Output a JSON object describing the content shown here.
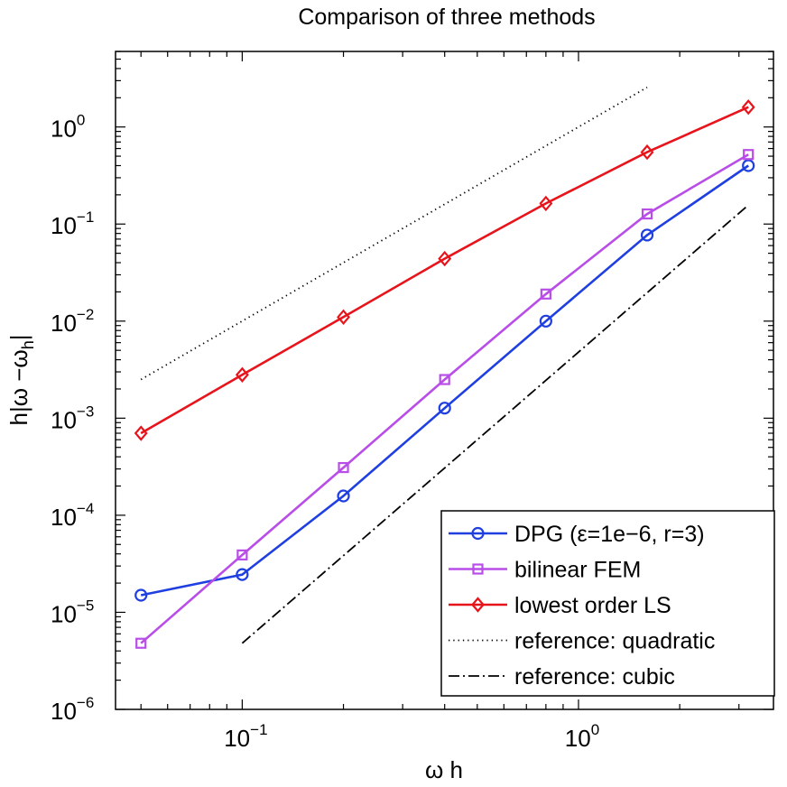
{
  "chart_data": {
    "type": "line",
    "title": "Comparison of three methods",
    "xlabel": "ω h",
    "ylabel": "h|ω −ω_h|",
    "xscale": "log",
    "yscale": "log",
    "xlim": [
      0.042,
      3.8
    ],
    "ylim": [
      1e-06,
      6
    ],
    "xticks": [
      {
        "base": "10",
        "exp": "−1",
        "value": 0.1
      },
      {
        "base": "10",
        "exp": "0",
        "value": 1
      }
    ],
    "yticks": [
      {
        "base": "10",
        "exp": "−6",
        "value": 1e-06
      },
      {
        "base": "10",
        "exp": "−5",
        "value": 1e-05
      },
      {
        "base": "10",
        "exp": "−4",
        "value": 0.0001
      },
      {
        "base": "10",
        "exp": "−3",
        "value": 0.001
      },
      {
        "base": "10",
        "exp": "−2",
        "value": 0.01
      },
      {
        "base": "10",
        "exp": "−1",
        "value": 0.1
      },
      {
        "base": "10",
        "exp": "0",
        "value": 1
      }
    ],
    "legend_position": "bottom-right",
    "series": [
      {
        "name": "DPG (ε=1e−6, r=3)",
        "color": "#1f3fe0",
        "marker": "circle",
        "line": "solid",
        "x": [
          0.05,
          0.1,
          0.2,
          0.4,
          0.8,
          1.6,
          3.2
        ],
        "y": [
          1.5e-05,
          2.45e-05,
          0.000158,
          0.00127,
          0.01,
          0.077,
          0.4
        ]
      },
      {
        "name": "bilinear FEM",
        "color": "#b94de8",
        "marker": "square",
        "line": "solid",
        "x": [
          0.05,
          0.1,
          0.2,
          0.4,
          0.8,
          1.6,
          3.2
        ],
        "y": [
          4.8e-06,
          3.9e-05,
          0.00031,
          0.0025,
          0.019,
          0.127,
          0.52
        ]
      },
      {
        "name": "lowest order LS",
        "color": "#e8141c",
        "marker": "diamond",
        "line": "solid",
        "x": [
          0.05,
          0.1,
          0.2,
          0.4,
          0.8,
          1.6,
          3.2
        ],
        "y": [
          0.0007,
          0.0028,
          0.011,
          0.044,
          0.163,
          0.55,
          1.6
        ]
      },
      {
        "name": "reference: quadratic",
        "color": "#000000",
        "marker": "none",
        "line": "dotted",
        "x": [
          0.05,
          1.6
        ],
        "y": [
          0.0025,
          2.56
        ]
      },
      {
        "name": "reference: cubic",
        "color": "#000000",
        "marker": "none",
        "line": "dashdot",
        "x": [
          0.1,
          3.2
        ],
        "y": [
          4.8e-06,
          0.157
        ]
      }
    ]
  }
}
